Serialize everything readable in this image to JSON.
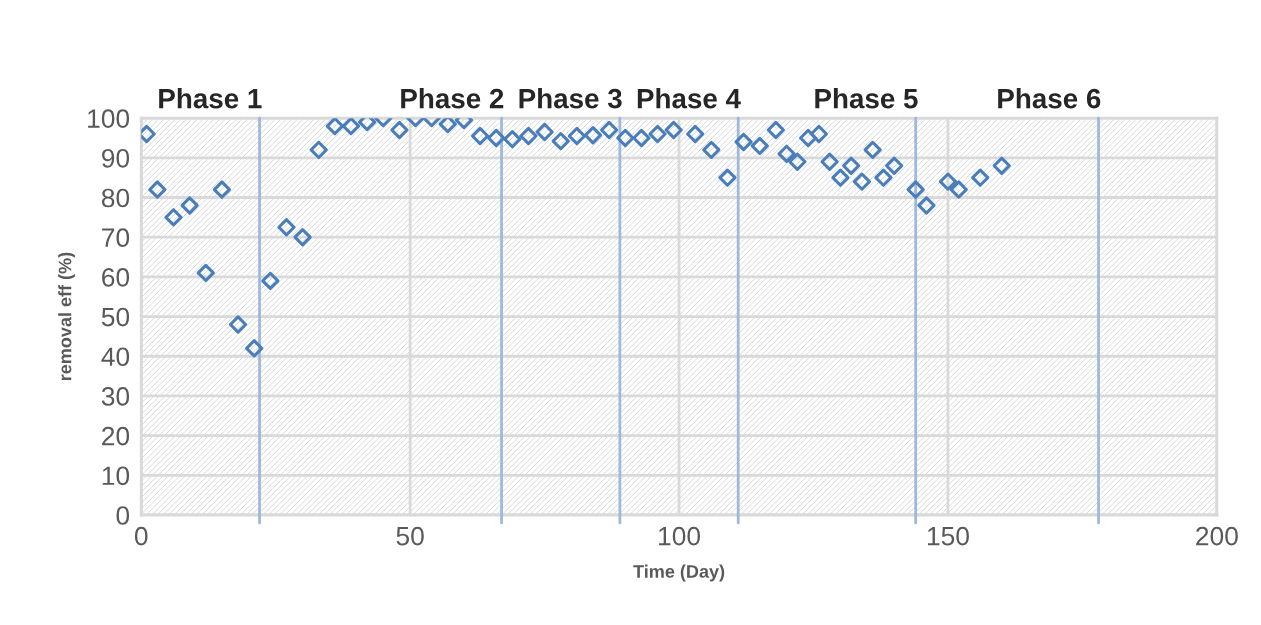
{
  "chart_data": {
    "type": "scatter",
    "xlabel": "Time (Day)",
    "ylabel": "removal eff (%)",
    "xlim": [
      0,
      200
    ],
    "ylim": [
      0,
      100
    ],
    "xticks": [
      0,
      50,
      100,
      150,
      200
    ],
    "yticks": [
      0,
      10,
      20,
      30,
      40,
      50,
      60,
      70,
      80,
      90,
      100
    ],
    "grid": true,
    "marker": "diamond",
    "legend": false,
    "series": [
      {
        "color": "#4a7ebb",
        "x": [
          1,
          3,
          6,
          9,
          12,
          15,
          18,
          21,
          24,
          27,
          30,
          33,
          36,
          39,
          42,
          45,
          48,
          51,
          54,
          57,
          60,
          63,
          66,
          69,
          72,
          75,
          78,
          81,
          84,
          87,
          90,
          93,
          96,
          99,
          103,
          106,
          109,
          112,
          115,
          118,
          120,
          122,
          124,
          126,
          128,
          130,
          132,
          134,
          136,
          138,
          140,
          144,
          146,
          150,
          152,
          156,
          160
        ],
        "values": [
          96,
          82,
          75,
          78,
          61,
          82,
          48,
          42,
          59,
          72.5,
          70,
          92,
          98,
          98,
          99,
          100,
          97,
          100,
          100,
          98.5,
          99.5,
          95.5,
          95,
          94.7,
          95.5,
          96.5,
          94.2,
          95.5,
          95.7,
          97,
          95,
          95,
          96,
          97,
          96,
          92,
          85,
          94,
          93,
          97,
          91,
          89,
          95,
          96,
          89,
          85,
          88,
          84,
          92,
          85,
          88,
          82,
          78,
          84,
          82,
          85,
          88
        ]
      }
    ],
    "ref_lines": [
      {
        "axis": "x",
        "value": 22,
        "color": "#9db9dc",
        "label": "Phase 1"
      },
      {
        "axis": "x",
        "value": 67,
        "color": "#9db9dc",
        "label": "Phase 2"
      },
      {
        "axis": "x",
        "value": 89,
        "color": "#9db9dc",
        "label": "Phase 3"
      },
      {
        "axis": "x",
        "value": 111,
        "color": "#9db9dc",
        "label": "Phase 4"
      },
      {
        "axis": "x",
        "value": 144,
        "color": "#9db9dc",
        "label": "Phase 5"
      },
      {
        "axis": "x",
        "value": 178,
        "color": "#9db9dc",
        "label": "Phase 6"
      }
    ]
  }
}
